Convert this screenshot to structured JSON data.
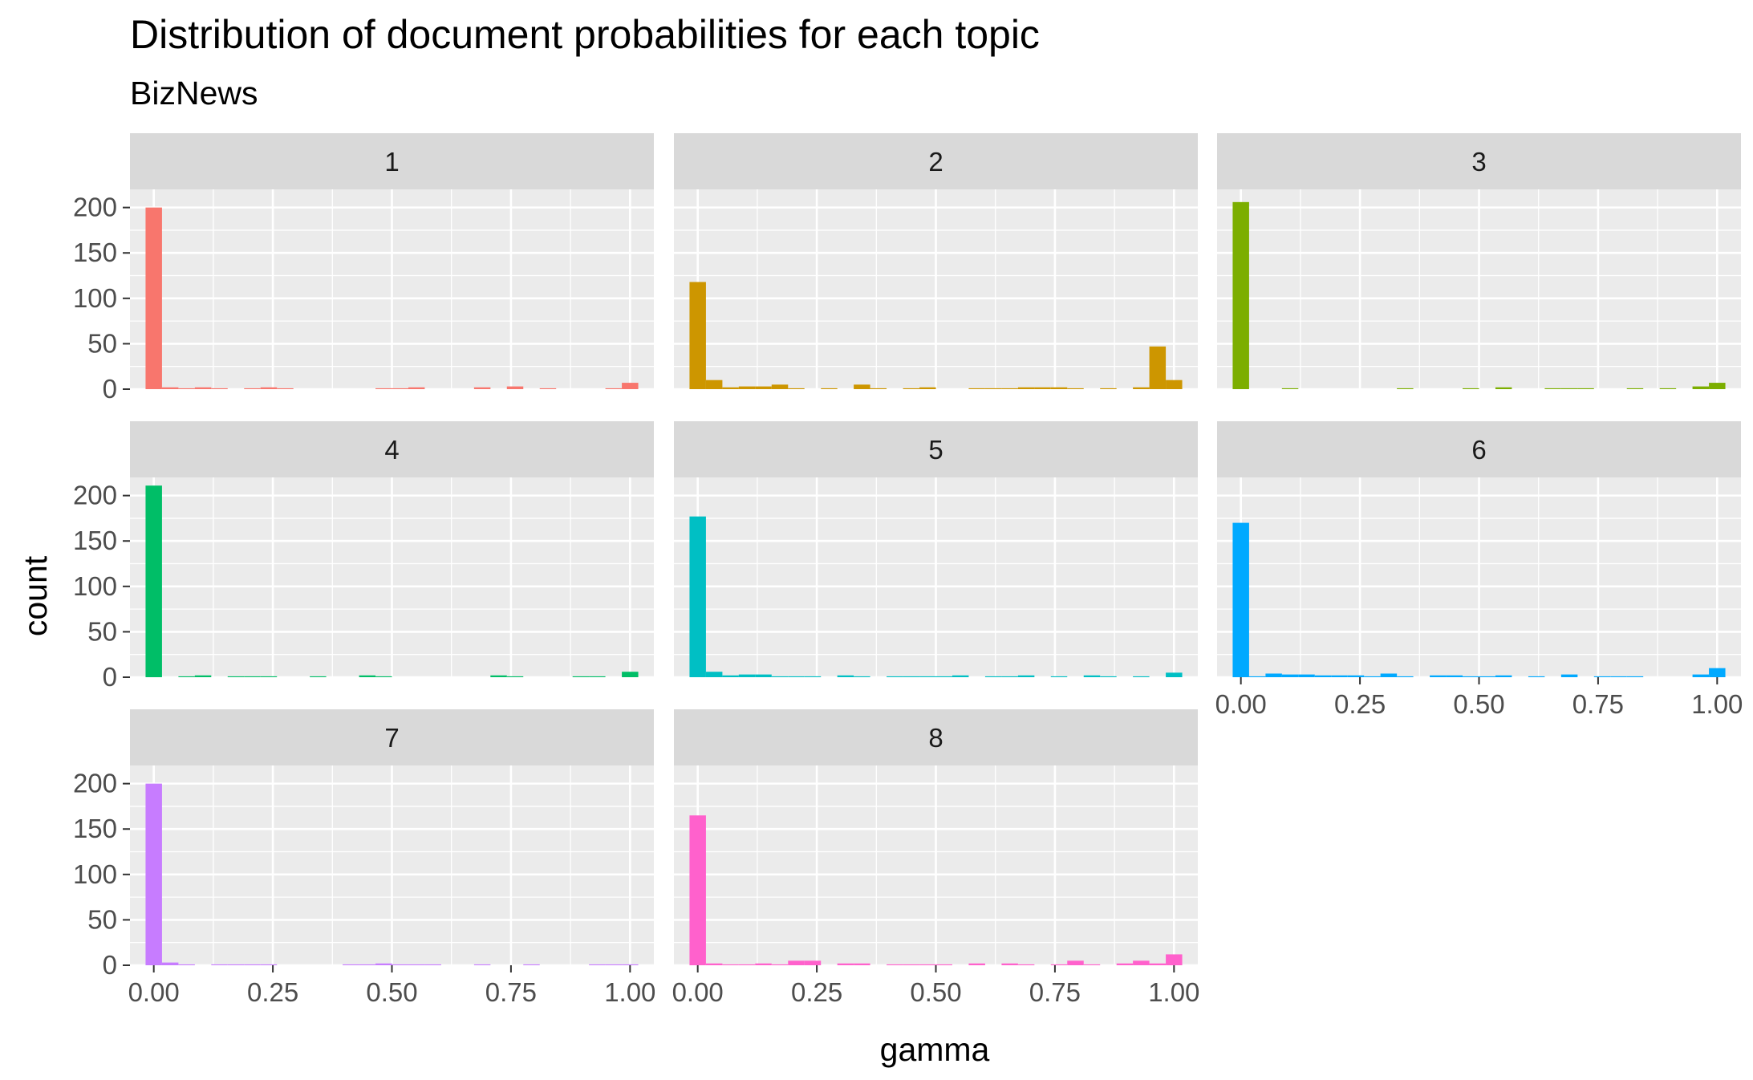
{
  "chart_data": {
    "type": "bar",
    "title": "Distribution of document probabilities for each topic",
    "subtitle": "BizNews",
    "xlabel": "gamma",
    "ylabel": "count",
    "xlim": [
      -0.05,
      1.05
    ],
    "ylim": [
      0,
      220
    ],
    "x_ticks": [
      "0.00",
      "0.25",
      "0.50",
      "0.75",
      "1.00"
    ],
    "y_ticks": [
      "0",
      "50",
      "100",
      "150",
      "200"
    ],
    "bin_width": 0.0345,
    "bin_centers": [
      0.0,
      0.0345,
      0.069,
      0.1034,
      0.1379,
      0.1724,
      0.2069,
      0.2414,
      0.2759,
      0.3103,
      0.3448,
      0.3793,
      0.4138,
      0.4483,
      0.4828,
      0.5172,
      0.5517,
      0.5862,
      0.6207,
      0.6552,
      0.6897,
      0.7241,
      0.7586,
      0.7931,
      0.8276,
      0.8621,
      0.8966,
      0.931,
      0.9655,
      1.0
    ],
    "panels": [
      {
        "label": "1",
        "color": "#F8766D",
        "counts": [
          200,
          2,
          1,
          2,
          1,
          0,
          1,
          2,
          1,
          0,
          0,
          0,
          0,
          0,
          1,
          1,
          2,
          0,
          0,
          0,
          2,
          0,
          3,
          0,
          1,
          0,
          0,
          0,
          1,
          7
        ]
      },
      {
        "label": "2",
        "color": "#CD9600",
        "counts": [
          118,
          10,
          2,
          3,
          3,
          5,
          1,
          0,
          1,
          0,
          5,
          1,
          0,
          1,
          2,
          0,
          0,
          1,
          1,
          1,
          2,
          2,
          2,
          1,
          0,
          1,
          0,
          2,
          47,
          10
        ]
      },
      {
        "label": "3",
        "color": "#7CAE00",
        "counts": [
          206,
          0,
          0,
          1,
          0,
          0,
          0,
          0,
          0,
          0,
          1,
          0,
          0,
          0,
          1,
          0,
          2,
          0,
          0,
          1,
          1,
          1,
          0,
          0,
          1,
          0,
          1,
          0,
          3,
          7
        ]
      },
      {
        "label": "4",
        "color": "#00BE67",
        "counts": [
          211,
          0,
          1,
          2,
          0,
          1,
          1,
          1,
          0,
          0,
          1,
          0,
          0,
          2,
          1,
          0,
          0,
          0,
          0,
          0,
          0,
          2,
          1,
          0,
          0,
          0,
          1,
          1,
          0,
          6
        ]
      },
      {
        "label": "5",
        "color": "#00BFC4",
        "counts": [
          177,
          6,
          2,
          3,
          3,
          1,
          1,
          1,
          0,
          2,
          1,
          0,
          1,
          1,
          1,
          1,
          2,
          0,
          1,
          1,
          2,
          0,
          1,
          0,
          2,
          1,
          0,
          1,
          0,
          5
        ]
      },
      {
        "label": "6",
        "color": "#00A9FF",
        "counts": [
          170,
          1,
          4,
          3,
          3,
          2,
          2,
          2,
          1,
          4,
          1,
          0,
          2,
          2,
          1,
          1,
          2,
          0,
          1,
          0,
          3,
          0,
          1,
          1,
          1,
          0,
          0,
          0,
          3,
          10
        ]
      },
      {
        "label": "7",
        "color": "#C77CFF",
        "counts": [
          200,
          3,
          1,
          0,
          1,
          1,
          1,
          1,
          0,
          0,
          0,
          0,
          1,
          1,
          2,
          1,
          1,
          1,
          0,
          0,
          1,
          0,
          0,
          1,
          0,
          0,
          0,
          1,
          1,
          1
        ]
      },
      {
        "label": "8",
        "color": "#FF61CC",
        "counts": [
          165,
          2,
          1,
          1,
          2,
          1,
          5,
          5,
          0,
          2,
          2,
          0,
          1,
          1,
          1,
          1,
          0,
          2,
          0,
          2,
          1,
          0,
          1,
          5,
          1,
          0,
          2,
          5,
          2,
          12
        ]
      }
    ]
  }
}
